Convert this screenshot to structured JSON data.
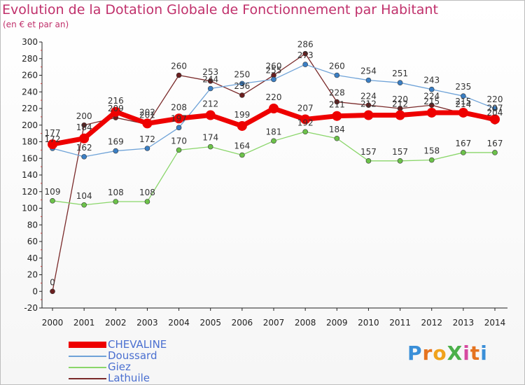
{
  "title": "Evolution de la Dotation Globale de Fonctionnement par Habitant",
  "subtitle": "(en € et par an)",
  "logo": {
    "text": "ProXiti",
    "letters": [
      "P",
      "r",
      "o",
      "X",
      "i",
      "t",
      "i"
    ],
    "colors": [
      "#3a8fd8",
      "#e5731f",
      "#f0a21c",
      "#4bb04a",
      "#d64aa0",
      "#e5731f",
      "#3a8fd8"
    ]
  },
  "chart_data": {
    "type": "line",
    "title": "Evolution de la Dotation Globale de Fonctionnement par Habitant",
    "subtitle": "(en € et par an)",
    "x": [
      "2000",
      "2001",
      "2002",
      "2003",
      "2004",
      "2005",
      "2006",
      "2007",
      "2008",
      "2009",
      "2010",
      "2011",
      "2012",
      "2013",
      "2014"
    ],
    "ylim": [
      -20,
      300
    ],
    "yticks": [
      -20,
      0,
      20,
      40,
      60,
      80,
      100,
      120,
      140,
      160,
      180,
      200,
      220,
      240,
      260,
      280,
      300
    ],
    "grid": false,
    "legend_position": "bottom-left",
    "series": [
      {
        "name": "Lathuile",
        "color": "#7a2a2a",
        "marker": "#6a1f1f",
        "width": 1.3,
        "values": [
          0,
          200,
          209,
          201,
          260,
          253,
          236,
          260,
          286,
          228,
          224,
          220,
          224,
          214,
          204
        ],
        "labels": [
          "0",
          "200",
          "209",
          "201",
          "260",
          "253",
          "236",
          "260",
          "286",
          "228",
          "224",
          "220",
          "224",
          "214",
          "204"
        ]
      },
      {
        "name": "Doussard",
        "color": "#6fa3d8",
        "marker": "#3b7fc4",
        "width": 1.3,
        "values": [
          172,
          162,
          169,
          172,
          197,
          244,
          250,
          255,
          273,
          260,
          254,
          251,
          243,
          235,
          220
        ],
        "labels": [
          "172",
          "162",
          "169",
          "172",
          "197",
          "244",
          "250",
          "255",
          "273",
          "260",
          "254",
          "251",
          "243",
          "235",
          "220"
        ]
      },
      {
        "name": "Giez",
        "color": "#8ad66a",
        "marker": "#6cc24a",
        "width": 1.3,
        "values": [
          109,
          104,
          108,
          108,
          170,
          174,
          164,
          181,
          192,
          184,
          157,
          157,
          158,
          167,
          167
        ],
        "labels": [
          "109",
          "104",
          "108",
          "108",
          "170",
          "174",
          "164",
          "181",
          "192",
          "184",
          "157",
          "157",
          "158",
          "167",
          "167"
        ]
      },
      {
        "name": "CHEVALINE",
        "color": "#ee0000",
        "marker": "#ee0000",
        "width": 7,
        "values": [
          177,
          184,
          216,
          202,
          208,
          212,
          199,
          220,
          207,
          211,
          212,
          212,
          215,
          215,
          207
        ],
        "labels": [
          "177",
          "184",
          "216",
          "202",
          "208",
          "212",
          "199",
          "220",
          "207",
          "211",
          "212",
          "212",
          "215",
          "215",
          "207"
        ]
      }
    ],
    "legend_order": [
      "CHEVALINE",
      "Doussard",
      "Giez",
      "Lathuile"
    ]
  }
}
